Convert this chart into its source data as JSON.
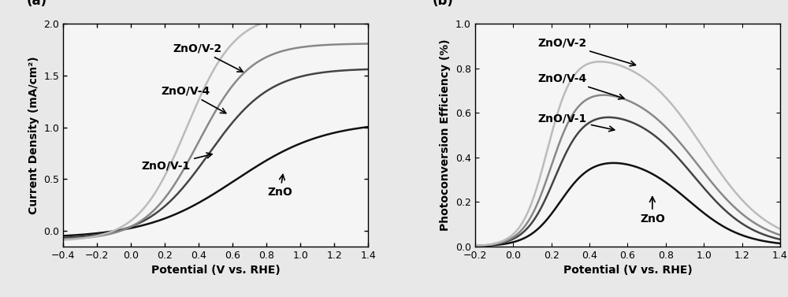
{
  "panel_a": {
    "xlabel": "Potential (V vs. RHE)",
    "ylabel": "Current Density (mA/cm²)",
    "xlim": [
      -0.4,
      1.4
    ],
    "ylim": [
      -0.15,
      2.0
    ],
    "xticks": [
      -0.4,
      -0.2,
      0.0,
      0.2,
      0.4,
      0.6,
      0.8,
      1.0,
      1.2,
      1.4
    ],
    "yticks": [
      0.0,
      0.5,
      1.0,
      1.5,
      2.0
    ],
    "label": "(a)",
    "curves": {
      "ZnO": {
        "color": "#111111",
        "lw": 1.8
      },
      "ZnO/V-1": {
        "color": "#444444",
        "lw": 1.8
      },
      "ZnO/V-4": {
        "color": "#888888",
        "lw": 1.8
      },
      "ZnO/V-2": {
        "color": "#bbbbbb",
        "lw": 1.8
      }
    }
  },
  "panel_b": {
    "xlabel": "Potential (V vs. RHE)",
    "ylabel": "Photoconversion Efficiency (%)",
    "xlim": [
      -0.2,
      1.4
    ],
    "ylim": [
      0.0,
      1.0
    ],
    "xticks": [
      -0.2,
      0.0,
      0.2,
      0.4,
      0.6,
      0.8,
      1.0,
      1.2,
      1.4
    ],
    "yticks": [
      0.0,
      0.2,
      0.4,
      0.6,
      0.8,
      1.0
    ],
    "label": "(b)",
    "curves": {
      "ZnO": {
        "color": "#111111",
        "lw": 1.8
      },
      "ZnO/V-1": {
        "color": "#444444",
        "lw": 1.8
      },
      "ZnO/V-4": {
        "color": "#888888",
        "lw": 1.8
      },
      "ZnO/V-2": {
        "color": "#bbbbbb",
        "lw": 1.8
      }
    }
  },
  "fig_bg": "#e8e8e8",
  "plot_bg": "#f5f5f5",
  "fontsize_label": 10,
  "fontsize_annot": 10,
  "fontsize_panel": 12,
  "fontsize_tick": 9
}
